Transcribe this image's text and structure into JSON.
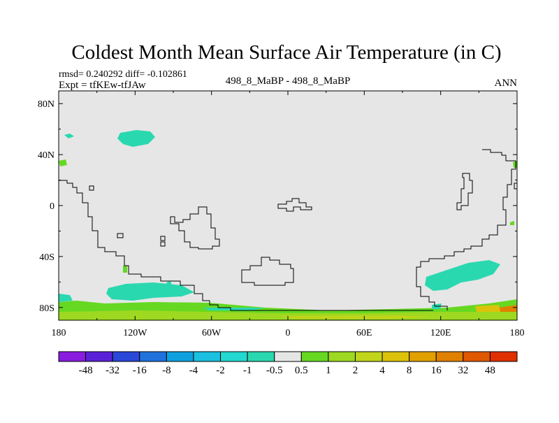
{
  "title": "Coldest Month Mean Surface Air Temperature (in C)",
  "stats": "rmsd= 0.240292 diff= -0.102861",
  "expt": "Expt = tfKEw-tfJAw",
  "comparison": "498_8_MaBP - 498_8_MaBP",
  "season": "ANN",
  "map": {
    "background_color": "#e6e6e6",
    "lat_labels": [
      {
        "value": 80,
        "label": "80N"
      },
      {
        "value": 40,
        "label": "40N"
      },
      {
        "value": 0,
        "label": "0"
      },
      {
        "value": -40,
        "label": "40S"
      },
      {
        "value": -80,
        "label": "80S"
      }
    ],
    "lon_labels": [
      {
        "value": -180,
        "label": "180"
      },
      {
        "value": -120,
        "label": "120W"
      },
      {
        "value": -60,
        "label": "60W"
      },
      {
        "value": 0,
        "label": "0"
      },
      {
        "value": 60,
        "label": "60E"
      },
      {
        "value": 120,
        "label": "120E"
      },
      {
        "value": 180,
        "label": "180"
      }
    ],
    "lon_range": [
      -180,
      180
    ],
    "lat_range": [
      -90,
      90
    ]
  },
  "colorbar": {
    "colors": [
      "#8a1ce0",
      "#5a22d8",
      "#2a48d8",
      "#1f72dc",
      "#0fa0e0",
      "#1bc0e0",
      "#22d8d0",
      "#2ad8b0",
      "#e6e6e6",
      "#66d822",
      "#9ed820",
      "#c0d41a",
      "#dcc20a",
      "#e0a000",
      "#e08000",
      "#e05800",
      "#e03000"
    ],
    "labels": [
      "-48",
      "-32",
      "-16",
      "-8",
      "-4",
      "-2",
      "-1",
      "-0.5",
      "0.5",
      "1",
      "2",
      "4",
      "8",
      "16",
      "32",
      "48"
    ]
  }
}
